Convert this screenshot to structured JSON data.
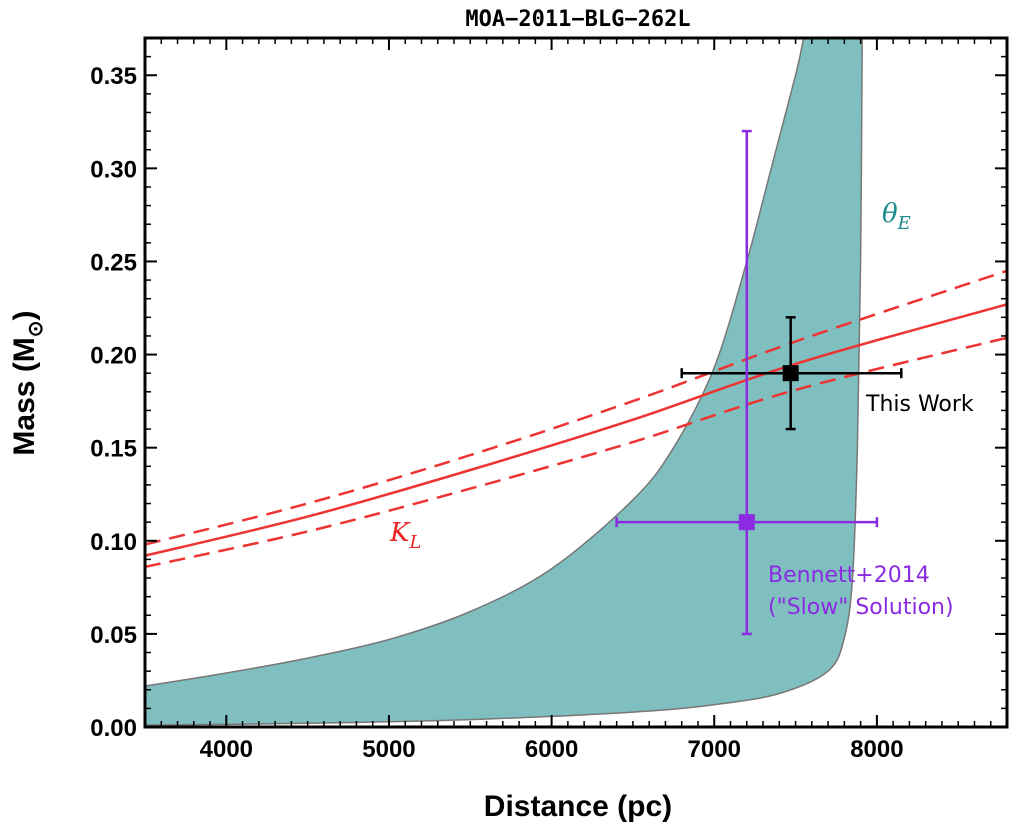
{
  "chart_data": {
    "type": "line",
    "title": "MOA−2011−BLG−262L",
    "xlabel": "Distance (pc)",
    "ylabel": "Mass (M",
    "ylabel_sub": "⊙",
    "xlim": [
      3500,
      8800
    ],
    "ylim": [
      0.0,
      0.37
    ],
    "xticks": [
      4000,
      5000,
      6000,
      7000,
      8000
    ],
    "xtick_labels": [
      "4000",
      "5000",
      "6000",
      "7000",
      "8000"
    ],
    "yticks": [
      0.0,
      0.05,
      0.1,
      0.15,
      0.2,
      0.25,
      0.3,
      0.35
    ],
    "ytick_labels": [
      "0.00",
      "0.05",
      "0.10",
      "0.15",
      "0.20",
      "0.25",
      "0.30",
      "0.35"
    ],
    "theta_e_band": {
      "label": "θ",
      "label_sub": "E",
      "color": "#7fbfbf",
      "upper": [
        [
          3500,
          0.022
        ],
        [
          4000,
          0.029
        ],
        [
          4500,
          0.037
        ],
        [
          5000,
          0.047
        ],
        [
          5500,
          0.062
        ],
        [
          6000,
          0.085
        ],
        [
          6500,
          0.122
        ],
        [
          6750,
          0.15
        ],
        [
          7000,
          0.193
        ],
        [
          7200,
          0.25
        ],
        [
          7350,
          0.3
        ],
        [
          7500,
          0.35
        ],
        [
          7550,
          0.37
        ]
      ],
      "lower": [
        [
          3500,
          0.001
        ],
        [
          4500,
          0.002
        ],
        [
          5500,
          0.004
        ],
        [
          6500,
          0.008
        ],
        [
          7000,
          0.012
        ],
        [
          7400,
          0.018
        ],
        [
          7700,
          0.03
        ],
        [
          7800,
          0.048
        ],
        [
          7850,
          0.08
        ],
        [
          7880,
          0.15
        ],
        [
          7900,
          0.25
        ],
        [
          7910,
          0.37
        ]
      ]
    },
    "kl_lines": {
      "label": "K",
      "label_sub": "L",
      "color": "#ee3333",
      "central": [
        [
          3500,
          0.092
        ],
        [
          4500,
          0.113
        ],
        [
          5500,
          0.138
        ],
        [
          6500,
          0.165
        ],
        [
          7500,
          0.195
        ],
        [
          8800,
          0.227
        ]
      ],
      "upper_dashed": [
        [
          3500,
          0.098
        ],
        [
          4500,
          0.12
        ],
        [
          5500,
          0.146
        ],
        [
          6500,
          0.175
        ],
        [
          7500,
          0.207
        ],
        [
          8800,
          0.245
        ]
      ],
      "lower_dashed": [
        [
          3500,
          0.086
        ],
        [
          4500,
          0.105
        ],
        [
          5500,
          0.128
        ],
        [
          6500,
          0.153
        ],
        [
          7500,
          0.181
        ],
        [
          8800,
          0.209
        ]
      ]
    },
    "points": [
      {
        "name": "This Work",
        "label": "This Work",
        "x": 7470,
        "y": 0.19,
        "xerr": [
          6800,
          8150
        ],
        "yerr": [
          0.16,
          0.22
        ],
        "color": "#000000"
      },
      {
        "name": "Bennett+2014",
        "label": "Bennett+2014",
        "label2": "(\"Slow\" Solution)",
        "x": 7200,
        "y": 0.11,
        "xerr": [
          6400,
          8000
        ],
        "yerr": [
          0.05,
          0.32
        ],
        "color": "#8a2be2"
      }
    ]
  }
}
